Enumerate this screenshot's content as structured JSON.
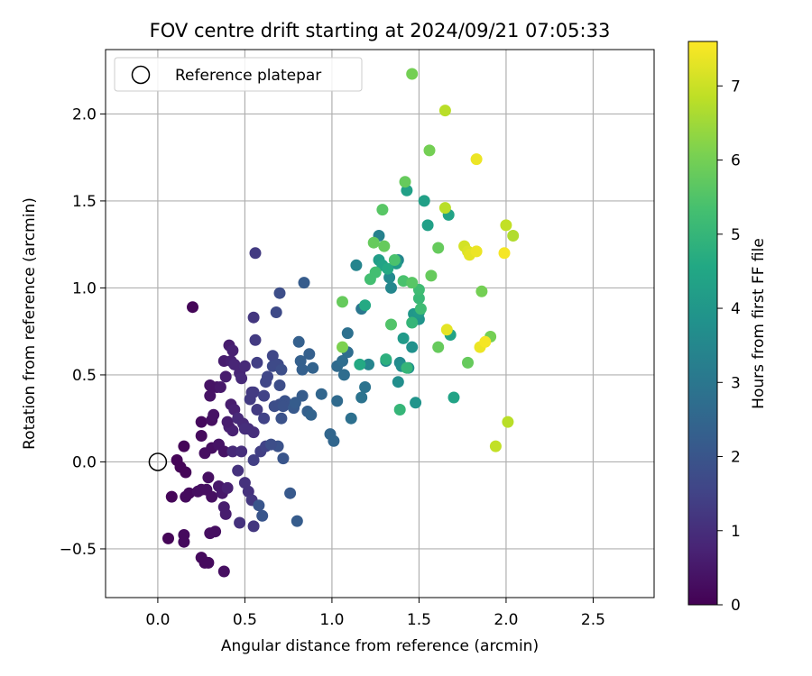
{
  "chart_data": {
    "type": "scatter",
    "title": "FOV centre drift starting at 2024/09/21 07:05:33",
    "xlabel": "Angular distance from reference (arcmin)",
    "ylabel": "Rotation from reference (arcmin)",
    "xlim": [
      -0.3,
      2.85
    ],
    "ylim": [
      -0.78,
      2.37
    ],
    "xticks": [
      "0.0",
      "0.5",
      "1.0",
      "1.5",
      "2.0",
      "2.5"
    ],
    "xtick_values": [
      0.0,
      0.5,
      1.0,
      1.5,
      2.0,
      2.5
    ],
    "yticks": [
      "−0.5",
      "0.0",
      "0.5",
      "1.0",
      "1.5",
      "2.0"
    ],
    "ytick_values": [
      -0.5,
      0.0,
      0.5,
      1.0,
      1.5,
      2.0
    ],
    "grid": true,
    "legend": {
      "position": "upper-left",
      "entries": [
        "Reference platepar"
      ]
    },
    "reference_point": {
      "x": 0.0,
      "y": 0.0
    },
    "colorbar": {
      "label": "Hours from first FF file",
      "range": [
        0,
        7.6
      ],
      "ticks": [
        "0",
        "1",
        "2",
        "3",
        "4",
        "5",
        "6",
        "7"
      ],
      "tick_values": [
        0,
        1,
        2,
        3,
        4,
        5,
        6,
        7
      ],
      "colormap": "viridis"
    },
    "points": [
      [
        0.2,
        0.89,
        0.1
      ],
      [
        0.11,
        0.01,
        0.1
      ],
      [
        0.15,
        0.09,
        0.1
      ],
      [
        0.13,
        -0.03,
        0.1
      ],
      [
        0.16,
        -0.06,
        0.1
      ],
      [
        0.08,
        -0.2,
        0.1
      ],
      [
        0.16,
        -0.2,
        0.2
      ],
      [
        0.18,
        -0.18,
        0.2
      ],
      [
        0.06,
        -0.44,
        0.1
      ],
      [
        0.15,
        -0.42,
        0.2
      ],
      [
        0.15,
        -0.46,
        0.2
      ],
      [
        0.25,
        -0.55,
        0.2
      ],
      [
        0.27,
        -0.58,
        0.2
      ],
      [
        0.29,
        -0.58,
        0.2
      ],
      [
        0.38,
        -0.63,
        0.3
      ],
      [
        0.3,
        -0.41,
        0.3
      ],
      [
        0.33,
        -0.4,
        0.3
      ],
      [
        0.23,
        -0.17,
        0.3
      ],
      [
        0.25,
        -0.16,
        0.3
      ],
      [
        0.28,
        -0.16,
        0.3
      ],
      [
        0.29,
        -0.09,
        0.3
      ],
      [
        0.31,
        -0.2,
        0.3
      ],
      [
        0.25,
        0.15,
        0.2
      ],
      [
        0.25,
        0.23,
        0.2
      ],
      [
        0.27,
        0.05,
        0.3
      ],
      [
        0.31,
        0.08,
        0.3
      ],
      [
        0.35,
        0.1,
        0.4
      ],
      [
        0.38,
        0.06,
        0.4
      ],
      [
        0.31,
        0.24,
        0.3
      ],
      [
        0.32,
        0.27,
        0.4
      ],
      [
        0.3,
        0.38,
        0.4
      ],
      [
        0.3,
        0.44,
        0.4
      ],
      [
        0.34,
        0.43,
        0.4
      ],
      [
        0.36,
        0.43,
        0.5
      ],
      [
        0.38,
        0.58,
        0.6
      ],
      [
        0.41,
        0.67,
        0.6
      ],
      [
        0.43,
        0.64,
        0.7
      ],
      [
        0.39,
        0.49,
        0.6
      ],
      [
        0.42,
        0.58,
        0.7
      ],
      [
        0.44,
        0.56,
        0.8
      ],
      [
        0.41,
        0.2,
        0.7
      ],
      [
        0.43,
        0.18,
        0.7
      ],
      [
        0.4,
        0.23,
        0.6
      ],
      [
        0.42,
        0.33,
        0.6
      ],
      [
        0.44,
        0.3,
        0.7
      ],
      [
        0.35,
        -0.14,
        0.5
      ],
      [
        0.37,
        -0.18,
        0.5
      ],
      [
        0.38,
        -0.26,
        0.6
      ],
      [
        0.4,
        -0.15,
        0.7
      ],
      [
        0.39,
        -0.3,
        0.6
      ],
      [
        0.47,
        0.51,
        0.8
      ],
      [
        0.48,
        0.48,
        0.9
      ],
      [
        0.5,
        0.55,
        0.9
      ],
      [
        0.46,
        0.25,
        0.9
      ],
      [
        0.49,
        0.22,
        0.9
      ],
      [
        0.52,
        0.19,
        1.0
      ],
      [
        0.55,
        0.17,
        1.0
      ],
      [
        0.5,
        0.19,
        1.0
      ],
      [
        0.43,
        0.06,
        0.9
      ],
      [
        0.48,
        0.06,
        1.0
      ],
      [
        0.46,
        -0.05,
        1.1
      ],
      [
        0.5,
        -0.12,
        1.1
      ],
      [
        0.52,
        -0.17,
        1.1
      ],
      [
        0.54,
        -0.22,
        1.2
      ],
      [
        0.47,
        -0.35,
        1.1
      ],
      [
        0.55,
        -0.37,
        1.2
      ],
      [
        0.55,
        0.83,
        1.2
      ],
      [
        0.56,
        1.2,
        1.3
      ],
      [
        0.54,
        0.4,
        1.2
      ],
      [
        0.53,
        0.36,
        1.3
      ],
      [
        0.57,
        0.3,
        1.3
      ],
      [
        0.55,
        0.4,
        1.3
      ],
      [
        0.56,
        0.7,
        1.3
      ],
      [
        0.57,
        0.57,
        1.4
      ],
      [
        0.55,
        0.01,
        1.4
      ],
      [
        0.59,
        0.06,
        1.4
      ],
      [
        0.62,
        0.09,
        1.5
      ],
      [
        0.61,
        0.25,
        1.5
      ],
      [
        0.61,
        0.38,
        1.5
      ],
      [
        0.62,
        0.46,
        1.6
      ],
      [
        0.63,
        0.49,
        1.6
      ],
      [
        0.66,
        0.61,
        1.6
      ],
      [
        0.66,
        0.55,
        1.7
      ],
      [
        0.69,
        0.56,
        1.7
      ],
      [
        0.71,
        0.53,
        1.8
      ],
      [
        0.7,
        0.44,
        1.8
      ],
      [
        0.68,
        0.86,
        1.7
      ],
      [
        0.7,
        0.97,
        1.8
      ],
      [
        0.67,
        0.32,
        1.8
      ],
      [
        0.7,
        0.33,
        1.8
      ],
      [
        0.73,
        0.35,
        1.9
      ],
      [
        0.72,
        0.32,
        1.9
      ],
      [
        0.71,
        0.25,
        1.9
      ],
      [
        0.72,
        0.02,
        2.0
      ],
      [
        0.69,
        0.09,
        1.9
      ],
      [
        0.65,
        0.1,
        1.8
      ],
      [
        0.58,
        -0.25,
        2.0
      ],
      [
        0.6,
        -0.31,
        2.0
      ],
      [
        0.76,
        -0.18,
        2.1
      ],
      [
        0.8,
        -0.34,
        2.2
      ],
      [
        0.84,
        1.03,
        2.2
      ],
      [
        0.81,
        0.69,
        2.3
      ],
      [
        0.87,
        0.62,
        2.3
      ],
      [
        0.82,
        0.58,
        2.3
      ],
      [
        0.83,
        0.53,
        2.3
      ],
      [
        0.89,
        0.54,
        2.4
      ],
      [
        0.78,
        0.31,
        2.1
      ],
      [
        0.79,
        0.34,
        2.2
      ],
      [
        0.83,
        0.38,
        2.2
      ],
      [
        0.86,
        0.29,
        2.3
      ],
      [
        0.88,
        0.27,
        2.4
      ],
      [
        0.94,
        0.39,
        2.5
      ],
      [
        0.99,
        0.16,
        2.5
      ],
      [
        1.01,
        0.12,
        2.5
      ],
      [
        1.03,
        0.55,
        2.6
      ],
      [
        1.03,
        0.35,
        2.6
      ],
      [
        1.06,
        0.58,
        2.7
      ],
      [
        1.09,
        0.63,
        2.7
      ],
      [
        1.07,
        0.5,
        2.7
      ],
      [
        1.09,
        0.74,
        2.8
      ],
      [
        1.11,
        0.25,
        2.8
      ],
      [
        1.17,
        0.37,
        2.9
      ],
      [
        1.19,
        0.43,
        2.9
      ],
      [
        1.17,
        0.88,
        3.0
      ],
      [
        1.27,
        1.3,
        3.3
      ],
      [
        1.14,
        1.13,
        3.4
      ],
      [
        1.21,
        0.56,
        3.4
      ],
      [
        1.38,
        1.16,
        3.5
      ],
      [
        1.34,
        1.0,
        3.5
      ],
      [
        1.33,
        1.06,
        3.6
      ],
      [
        1.31,
        0.58,
        3.6
      ],
      [
        1.38,
        0.46,
        3.7
      ],
      [
        1.39,
        0.57,
        3.6
      ],
      [
        1.4,
        0.55,
        3.7
      ],
      [
        1.44,
        0.54,
        3.8
      ],
      [
        1.46,
        0.66,
        3.8
      ],
      [
        1.48,
        0.34,
        3.9
      ],
      [
        1.5,
        0.82,
        3.9
      ],
      [
        1.47,
        0.85,
        4.0
      ],
      [
        1.5,
        0.86,
        4.1
      ],
      [
        1.41,
        0.71,
        4.1
      ],
      [
        1.37,
        1.14,
        4.1
      ],
      [
        1.43,
        1.56,
        4.3
      ],
      [
        1.53,
        1.5,
        4.3
      ],
      [
        1.55,
        1.36,
        4.3
      ],
      [
        1.67,
        1.42,
        4.4
      ],
      [
        1.7,
        0.37,
        4.4
      ],
      [
        1.68,
        0.73,
        4.4
      ],
      [
        1.27,
        1.16,
        4.2
      ],
      [
        1.29,
        1.13,
        4.4
      ],
      [
        1.32,
        1.11,
        4.6
      ],
      [
        1.19,
        0.9,
        4.6
      ],
      [
        1.16,
        0.56,
        4.6
      ],
      [
        1.31,
        0.59,
        4.8
      ],
      [
        1.39,
        0.3,
        5.0
      ],
      [
        1.43,
        0.54,
        5.0
      ],
      [
        1.46,
        0.8,
        5.0
      ],
      [
        1.5,
        0.94,
        5.1
      ],
      [
        1.51,
        0.88,
        5.2
      ],
      [
        1.5,
        0.99,
        5.2
      ],
      [
        1.22,
        1.05,
        5.3
      ],
      [
        1.25,
        1.09,
        5.3
      ],
      [
        1.36,
        1.16,
        5.4
      ],
      [
        1.41,
        1.04,
        5.4
      ],
      [
        1.46,
        1.03,
        5.6
      ],
      [
        1.34,
        0.79,
        5.5
      ],
      [
        1.29,
        1.45,
        5.6
      ],
      [
        1.24,
        1.26,
        5.8
      ],
      [
        1.3,
        1.24,
        5.8
      ],
      [
        1.57,
        1.07,
        5.8
      ],
      [
        1.61,
        1.23,
        5.8
      ],
      [
        1.61,
        0.66,
        5.8
      ],
      [
        1.78,
        0.57,
        5.8
      ],
      [
        1.06,
        0.92,
        5.8
      ],
      [
        1.06,
        0.66,
        6.1
      ],
      [
        1.42,
        1.61,
        5.8
      ],
      [
        1.46,
        2.23,
        6.0
      ],
      [
        1.56,
        1.79,
        6.0
      ],
      [
        1.86,
        0.98,
        6.0
      ],
      [
        1.91,
        0.72,
        6.0
      ],
      [
        1.65,
        1.46,
        6.8
      ],
      [
        1.65,
        2.02,
        6.8
      ],
      [
        1.66,
        0.76,
        7.3
      ],
      [
        1.76,
        1.24,
        7.1
      ],
      [
        1.78,
        1.21,
        7.2
      ],
      [
        1.79,
        1.19,
        7.3
      ],
      [
        1.83,
        1.74,
        7.4
      ],
      [
        1.83,
        1.21,
        7.4
      ],
      [
        1.85,
        0.66,
        7.4
      ],
      [
        1.88,
        0.69,
        7.5
      ],
      [
        1.99,
        1.2,
        7.5
      ],
      [
        2.0,
        1.36,
        6.9
      ],
      [
        2.04,
        1.3,
        6.7
      ],
      [
        1.94,
        0.09,
        6.9
      ],
      [
        2.01,
        0.23,
        6.8
      ]
    ]
  }
}
